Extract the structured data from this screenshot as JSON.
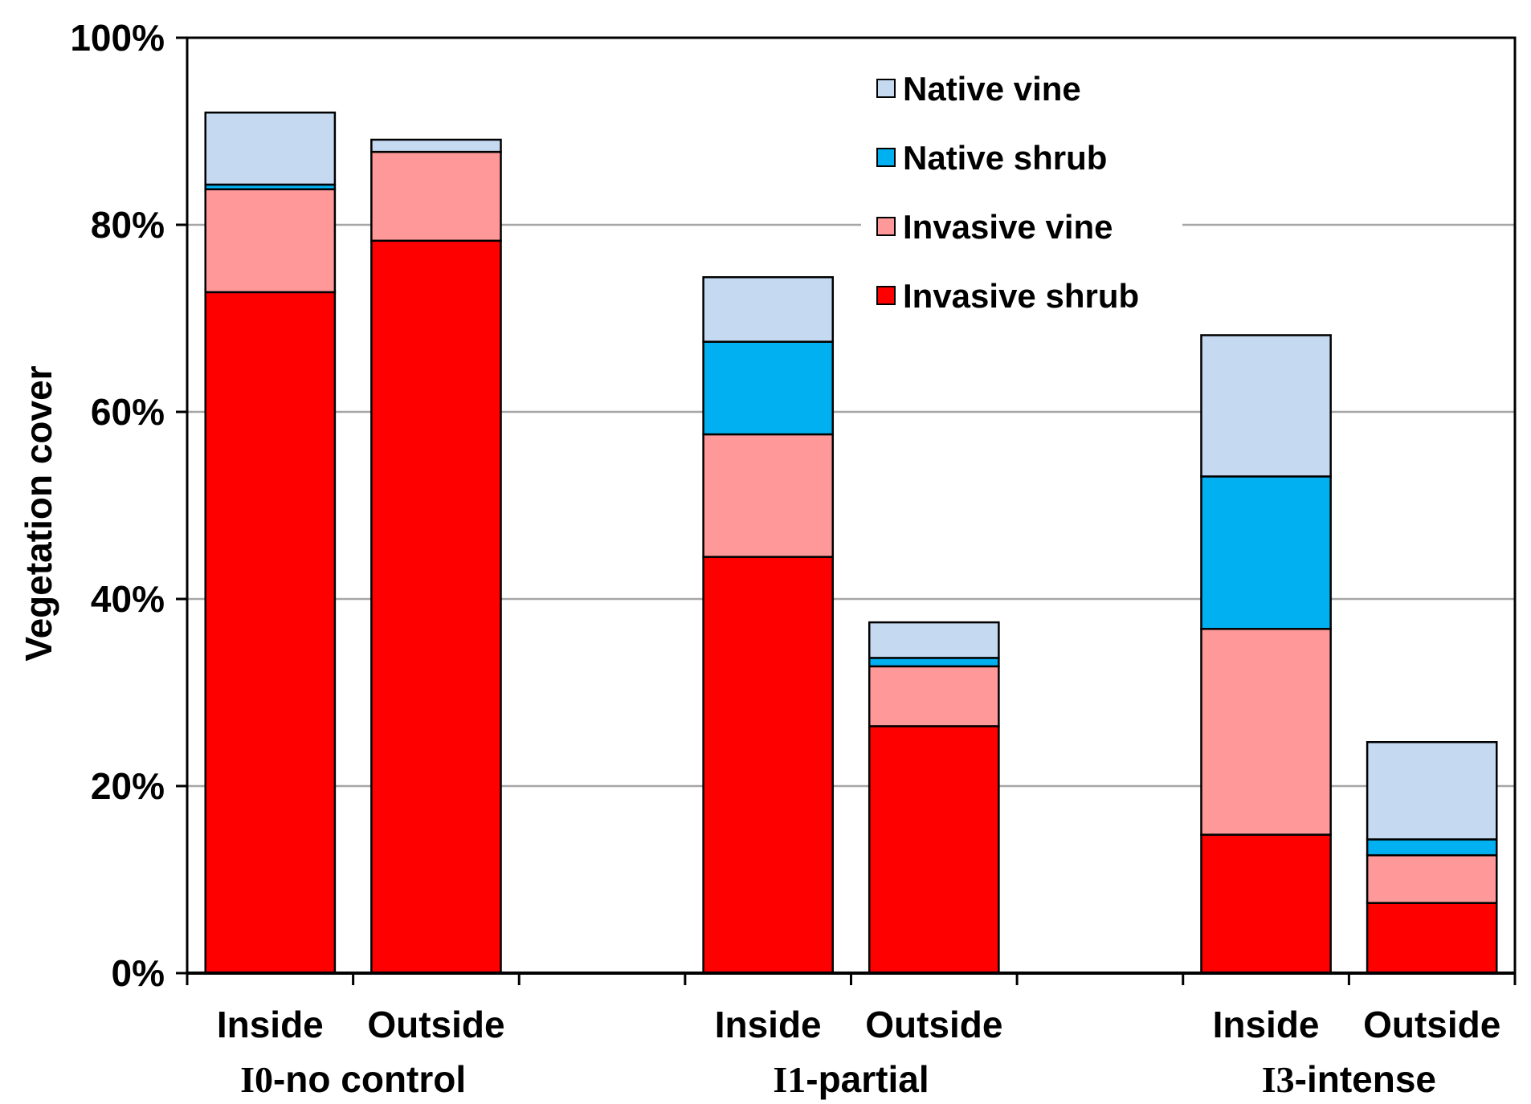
{
  "chart_data": {
    "type": "bar",
    "stacked": true,
    "ylabel": "Vegetation cover",
    "ylim": [
      0,
      100
    ],
    "yticks": [
      "0%",
      "20%",
      "40%",
      "60%",
      "80%",
      "100%"
    ],
    "grid": true,
    "legend_position": "top-right",
    "groups": [
      {
        "prefix": "I0",
        "rest": "-no control",
        "categories": [
          "Inside",
          "Outside"
        ]
      },
      {
        "prefix": "I1",
        "rest": "-partial",
        "categories": [
          "Inside",
          "Outside"
        ]
      },
      {
        "prefix": "I3",
        "rest": "-intense",
        "categories": [
          "Inside",
          "Outside"
        ]
      }
    ],
    "series": [
      {
        "name": "Invasive shrub",
        "color": "#ff0000",
        "values": [
          72.8,
          78.3,
          44.5,
          26.4,
          14.8,
          7.5
        ]
      },
      {
        "name": "Invasive vine",
        "color": "#ff9999",
        "values": [
          11.0,
          9.5,
          13.1,
          6.4,
          22.0,
          5.1
        ]
      },
      {
        "name": "Native shrub",
        "color": "#00b0f0",
        "values": [
          0.5,
          0.0,
          9.9,
          0.9,
          16.3,
          1.7
        ]
      },
      {
        "name": "Native vine",
        "color": "#c5d9f1",
        "values": [
          7.7,
          1.3,
          6.9,
          3.8,
          15.1,
          10.4
        ]
      }
    ],
    "legend_order": [
      "Native vine",
      "Native shrub",
      "Invasive vine",
      "Invasive shrub"
    ]
  }
}
